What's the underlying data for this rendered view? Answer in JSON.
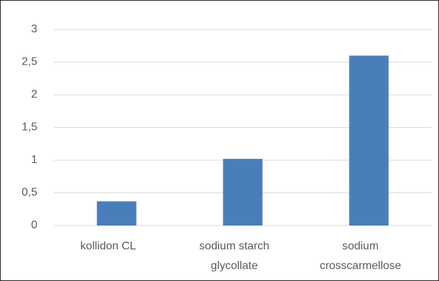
{
  "chart_data": {
    "type": "bar",
    "categories": [
      "kollidon CL",
      "sodium starch glycollate",
      "sodium crosscarmellose"
    ],
    "values": [
      0.37,
      1.02,
      2.6
    ],
    "color": "#4a7ebb",
    "ylim": [
      0,
      3
    ],
    "yticks": [
      0,
      {
        "value": 0.5,
        "label": "0,5"
      },
      1,
      {
        "value": 1.5,
        "label": "1,5"
      },
      2,
      {
        "value": 2.5,
        "label": "2,5"
      },
      3
    ],
    "grid": true
  }
}
